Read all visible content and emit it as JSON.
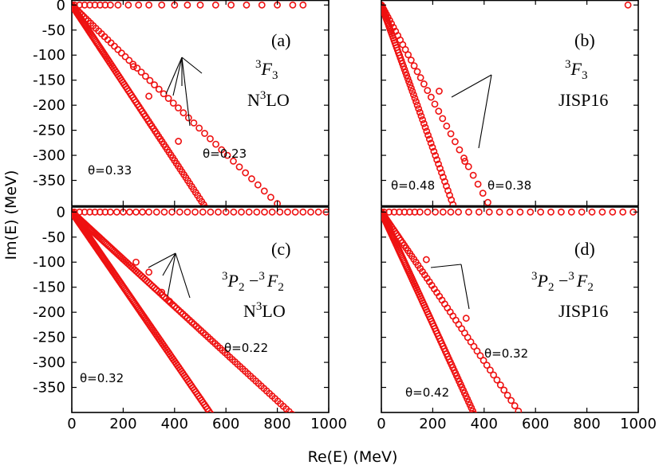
{
  "figure": {
    "x_axis_label": "Re(E) (MeV)",
    "y_axis_label": "Im(E) (MeV)",
    "x_ticks": [
      "0",
      "200",
      "400",
      "600",
      "800",
      "1000"
    ],
    "y_ticks": [
      "0",
      "-50",
      "-100",
      "-150",
      "-200",
      "-250",
      "-300",
      "-350"
    ]
  },
  "panels": {
    "a": {
      "tag": "(a)",
      "wave": "3F3",
      "wave_sup": "3",
      "wave_main": "F",
      "wave_sub": "3",
      "potential": "N3LO",
      "pot_pre": "N",
      "pot_sup": "3",
      "pot_post": "LO",
      "theta_left": "θ=0.33",
      "theta_right": "θ=0.23"
    },
    "b": {
      "tag": "(b)",
      "wave": "3F3",
      "wave_sup": "3",
      "wave_main": "F",
      "wave_sub": "3",
      "potential": "JISP16",
      "theta_left": "θ=0.48",
      "theta_right": "θ=0.38"
    },
    "c": {
      "tag": "(c)",
      "wave": "3P2 - 3F2",
      "w1_sup": "3",
      "w1_main": "P",
      "w1_sub": "2",
      "w_mid": " −",
      "w2_sup": "3",
      "w2_main": "F",
      "w2_sub": "2",
      "potential": "N3LO",
      "pot_pre": "N",
      "pot_sup": "3",
      "pot_post": "LO",
      "theta_left": "θ=0.32",
      "theta_right": "θ=0.22"
    },
    "d": {
      "tag": "(d)",
      "wave": "3P2 - 3F2",
      "w1_sup": "3",
      "w1_main": "P",
      "w1_sub": "2",
      "w_mid": " −",
      "w2_sup": "3",
      "w2_main": "F",
      "w2_sub": "2",
      "potential": "JISP16",
      "theta_left": "θ=0.42",
      "theta_right": "θ=0.32"
    }
  },
  "colors": {
    "marker": "#ee1111",
    "axis": "#000000"
  },
  "chart_data": [
    {
      "panel": "a",
      "type": "scatter",
      "title": "3F3 N3LO",
      "xlabel": "Re(E) (MeV)",
      "ylabel": "Im(E) (MeV)",
      "xlim": [
        0,
        1000
      ],
      "ylim": [
        -400,
        10
      ],
      "series": [
        {
          "name": "continuum theta=0.33",
          "kind": "line",
          "theta": 0.33,
          "x_max": 960,
          "n": 160
        },
        {
          "name": "continuum theta=0.23",
          "kind": "line",
          "theta": 0.23,
          "x_max": 960,
          "n": 60
        },
        {
          "name": "real axis bound",
          "kind": "real",
          "x": [
            10,
            30,
            50,
            70,
            90,
            110,
            130,
            150,
            180,
            220,
            260,
            300,
            350,
            400,
            450,
            500,
            560,
            620,
            680,
            740,
            800,
            860,
            900
          ]
        },
        {
          "name": "resonances",
          "kind": "points",
          "points": [
            [
              240,
              -123
            ],
            [
              300,
              -182
            ],
            [
              415,
              -272
            ]
          ]
        }
      ]
    },
    {
      "panel": "b",
      "type": "scatter",
      "title": "3F3 JISP16",
      "xlabel": "Re(E) (MeV)",
      "ylabel": "Im(E) (MeV)",
      "xlim": [
        0,
        1000
      ],
      "ylim": [
        -400,
        10
      ],
      "series": [
        {
          "name": "continuum theta=0.48",
          "kind": "line",
          "theta": 0.48,
          "x_max": 960,
          "n": 150
        },
        {
          "name": "continuum theta=0.38",
          "kind": "line",
          "theta": 0.38,
          "x_max": 960,
          "n": 60
        },
        {
          "name": "real axis bound",
          "kind": "real",
          "x": [
            960
          ]
        },
        {
          "name": "resonances",
          "kind": "points",
          "points": [
            [
              225,
              -172
            ],
            [
              325,
              -312
            ]
          ]
        }
      ]
    },
    {
      "panel": "c",
      "type": "scatter",
      "title": "3P2 - 3F2 N3LO",
      "xlabel": "Re(E) (MeV)",
      "ylabel": "Im(E) (MeV)",
      "xlim": [
        0,
        1000
      ],
      "ylim": [
        -400,
        10
      ],
      "series": [
        {
          "name": "continuum theta=0.32",
          "kind": "line",
          "theta": 0.32,
          "x_max": 960,
          "n": 220
        },
        {
          "name": "continuum theta=0.22",
          "kind": "line",
          "theta": 0.22,
          "x_max": 960,
          "n": 140
        },
        {
          "name": "real axis bound",
          "kind": "real",
          "x": [
            10,
            30,
            50,
            70,
            90,
            110,
            130,
            150,
            175,
            200,
            225,
            250,
            275,
            300,
            330,
            360,
            390,
            420,
            450,
            480,
            510,
            540,
            570,
            600,
            630,
            660,
            690,
            720,
            750,
            780,
            810,
            840,
            870,
            900,
            930,
            960,
            990
          ]
        },
        {
          "name": "resonances",
          "kind": "points",
          "points": [
            [
              250,
              -100
            ],
            [
              300,
              -120
            ],
            [
              350,
              -160
            ],
            [
              380,
              -178
            ]
          ]
        }
      ]
    },
    {
      "panel": "d",
      "type": "scatter",
      "title": "3P2 - 3F2 JISP16",
      "xlabel": "Re(E) (MeV)",
      "ylabel": "Im(E) (MeV)",
      "xlim": [
        0,
        1000
      ],
      "ylim": [
        -400,
        10
      ],
      "series": [
        {
          "name": "continuum theta=0.42",
          "kind": "line",
          "theta": 0.42,
          "x_max": 960,
          "n": 200
        },
        {
          "name": "continuum theta=0.32",
          "kind": "line",
          "theta": 0.32,
          "x_max": 960,
          "n": 90
        },
        {
          "name": "real axis bound",
          "kind": "real",
          "x": [
            10,
            30,
            50,
            70,
            90,
            110,
            130,
            150,
            180,
            210,
            240,
            270,
            300,
            340,
            380,
            420,
            460,
            500,
            540,
            580,
            620,
            660,
            700,
            740,
            780,
            820,
            860,
            900,
            940,
            980
          ]
        },
        {
          "name": "resonances",
          "kind": "points",
          "points": [
            [
              175,
              -95
            ],
            [
              330,
              -212
            ]
          ]
        }
      ]
    }
  ]
}
